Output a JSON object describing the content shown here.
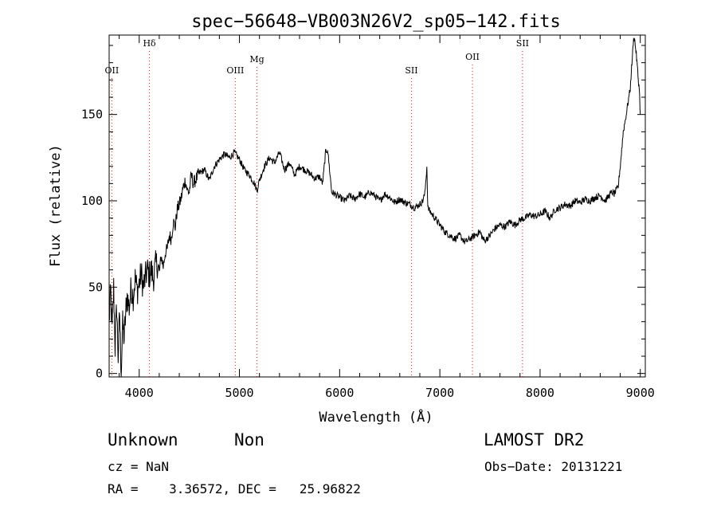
{
  "chart_data": {
    "type": "line",
    "title": "spec−56648−VB003N26V2_sp05−142.fits",
    "xlabel": "Wavelength (Å)",
    "ylabel": "Flux (relative)",
    "xlim": [
      3700,
      9050
    ],
    "ylim": [
      -2,
      196
    ],
    "x_ticks": [
      4000,
      5000,
      6000,
      7000,
      8000,
      9000
    ],
    "y_ticks": [
      0,
      50,
      100,
      150
    ],
    "grid": false,
    "legend": "none",
    "line_color": "#000000",
    "marker_color": "#ff0000",
    "series": [
      {
        "x": [
          3700,
          3715,
          3730,
          3745,
          3760,
          3775,
          3790,
          3805,
          3820,
          3835,
          3850,
          3865,
          3880,
          3900,
          3920,
          3940,
          3960,
          3980,
          4000,
          4020,
          4040,
          4060,
          4080,
          4100,
          4120,
          4140,
          4160,
          4180,
          4200,
          4220,
          4240,
          4260,
          4280,
          4300,
          4320,
          4340,
          4360,
          4380,
          4400,
          4420,
          4440,
          4460,
          4480,
          4500,
          4520,
          4540,
          4560,
          4600,
          4650,
          4700,
          4750,
          4800,
          4850,
          4900,
          4950,
          5000,
          5050,
          5100,
          5150,
          5175,
          5200,
          5250,
          5300,
          5350,
          5400,
          5450,
          5500,
          5550,
          5600,
          5650,
          5700,
          5750,
          5800,
          5830,
          5860,
          5880,
          5900,
          5920,
          5950,
          6000,
          6050,
          6100,
          6150,
          6200,
          6250,
          6300,
          6350,
          6400,
          6450,
          6500,
          6550,
          6600,
          6650,
          6700,
          6750,
          6800,
          6830,
          6850,
          6870,
          6880,
          6900,
          6950,
          7000,
          7050,
          7100,
          7150,
          7200,
          7250,
          7300,
          7350,
          7400,
          7430,
          7450,
          7500,
          7550,
          7600,
          7650,
          7700,
          7750,
          7800,
          7850,
          7900,
          7950,
          8000,
          8050,
          8100,
          8150,
          8200,
          8250,
          8300,
          8350,
          8400,
          8450,
          8500,
          8550,
          8600,
          8650,
          8700,
          8720,
          8740,
          8760,
          8780,
          8800,
          8830,
          8860,
          8880,
          8900,
          8910,
          8920,
          8930,
          8940,
          8950,
          8960,
          8970,
          8980,
          8990,
          9000
        ],
        "y": [
          30,
          47,
          25,
          50,
          15,
          40,
          10,
          35,
          0,
          28,
          20,
          35,
          45,
          38,
          50,
          45,
          55,
          48,
          52,
          58,
          50,
          55,
          60,
          57,
          60,
          55,
          62,
          64,
          58,
          68,
          62,
          70,
          72,
          80,
          78,
          88,
          85,
          95,
          98,
          102,
          108,
          112,
          106,
          105,
          115,
          110,
          112,
          116,
          118,
          112,
          120,
          124,
          127,
          125,
          128,
          124,
          118,
          115,
          110,
          106,
          112,
          120,
          125,
          122,
          128,
          118,
          122,
          115,
          120,
          118,
          116,
          113,
          114,
          110,
          128,
          130,
          118,
          105,
          104,
          102,
          100,
          103,
          101,
          104,
          102,
          105,
          103,
          100,
          104,
          102,
          99,
          101,
          99,
          98,
          96,
          98,
          100,
          104,
          120,
          96,
          94,
          90,
          86,
          82,
          80,
          78,
          80,
          76,
          78,
          80,
          82,
          78,
          77,
          80,
          84,
          86,
          85,
          88,
          86,
          89,
          90,
          92,
          91,
          92,
          94,
          90,
          95,
          96,
          98,
          97,
          100,
          99,
          101,
          100,
          102,
          103,
          100,
          104,
          105,
          104,
          106,
          108,
          120,
          140,
          150,
          158,
          165,
          175,
          182,
          192,
          195,
          190,
          185,
          178,
          170,
          165,
          150
        ]
      }
    ],
    "lines": [
      {
        "name": "OII",
        "wavelength": 3727
      },
      {
        "name": "Hδ",
        "wavelength": 4102
      },
      {
        "name": "OIII",
        "wavelength": 4959
      },
      {
        "name": "Mg",
        "wavelength": 5175
      },
      {
        "name": "SII",
        "wavelength": 6717
      },
      {
        "name": "OII",
        "wavelength": 7325
      },
      {
        "name": "SII",
        "wavelength": 7825
      }
    ]
  },
  "info": {
    "class": "Unknown",
    "subclass": "Non",
    "survey": "LAMOST DR2",
    "cz": "cz = NaN",
    "obsdate": "Obs−Date: 20131221",
    "coords": "RA =    3.36572, DEC =   25.96822"
  }
}
